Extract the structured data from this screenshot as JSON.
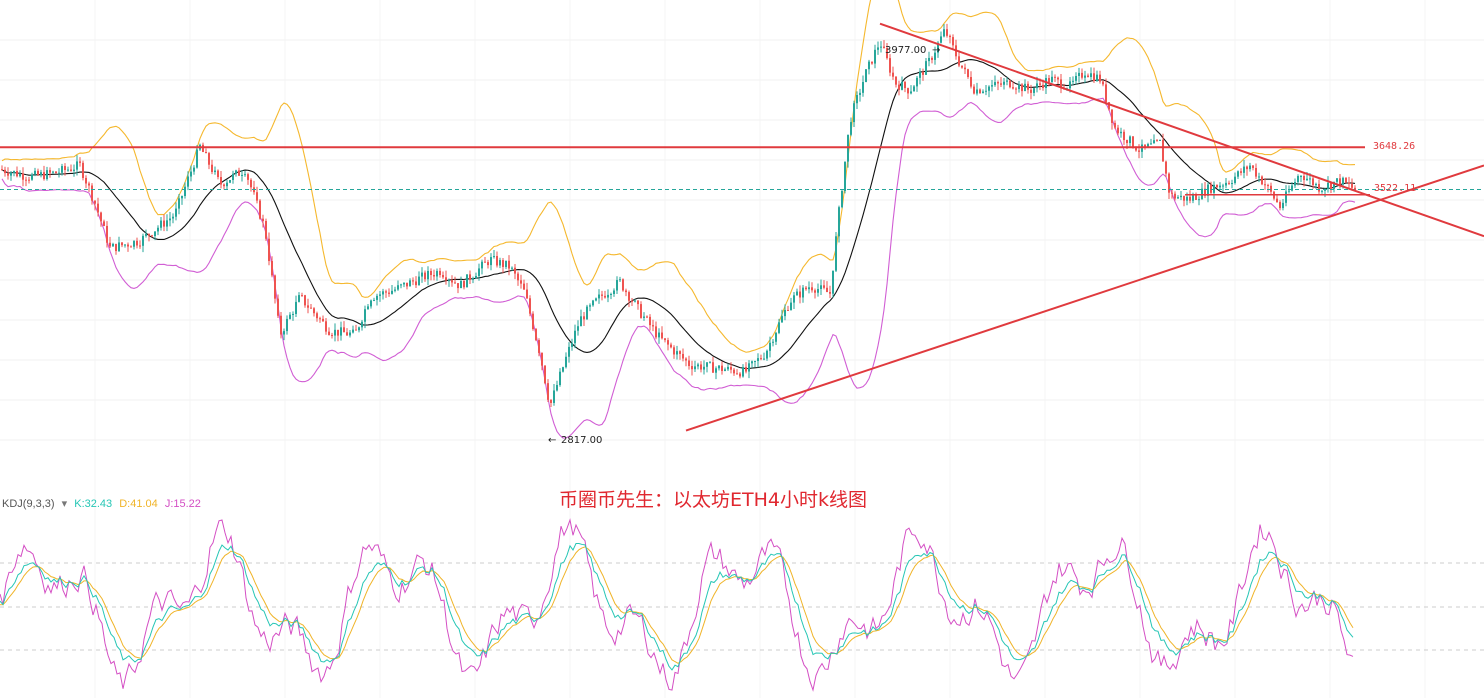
{
  "caption": "币圈币先生：以太坊ETH4小时k线图",
  "indicator": {
    "name": "KDJ(9,3,3)",
    "menu_icon": "dropdown-caret-icon",
    "k_label": "K:32.43",
    "d_label": "D:41.04",
    "j_label": "J:15.22",
    "colors": {
      "k": "#26c6b5",
      "d": "#f0b429",
      "j": "#d44fc4"
    }
  },
  "annotations": {
    "high_label": "3977.00",
    "low_label": "2817.00",
    "resistance_label": "3648.26",
    "support_label": "3522.11"
  },
  "colors": {
    "up": "#26a69a",
    "down": "#ef5350",
    "upper_band": "#f5b82e",
    "lower_band": "#d15ed4",
    "middle_band": "#111111",
    "trendline": "#e03a3e",
    "current_price_line": "#26a69a"
  },
  "chart_data": {
    "type": "candlestick",
    "instrument": "ETH",
    "interval": "4h",
    "ylim": [
      2790,
      4040
    ],
    "key_levels": {
      "resistance": 3648.26,
      "support": 3522.11,
      "high": 3977.0,
      "low": 2817.0,
      "current": 3536
    },
    "path": [
      [
        0,
        3590
      ],
      [
        30,
        3570
      ],
      [
        55,
        3580
      ],
      [
        80,
        3600
      ],
      [
        95,
        3500
      ],
      [
        110,
        3380
      ],
      [
        140,
        3400
      ],
      [
        155,
        3430
      ],
      [
        175,
        3470
      ],
      [
        200,
        3650
      ],
      [
        220,
        3550
      ],
      [
        245,
        3590
      ],
      [
        265,
        3430
      ],
      [
        280,
        3150
      ],
      [
        300,
        3250
      ],
      [
        330,
        3160
      ],
      [
        355,
        3150
      ],
      [
        370,
        3250
      ],
      [
        395,
        3270
      ],
      [
        420,
        3300
      ],
      [
        440,
        3320
      ],
      [
        460,
        3280
      ],
      [
        490,
        3350
      ],
      [
        510,
        3330
      ],
      [
        525,
        3260
      ],
      [
        540,
        3100
      ],
      [
        550,
        2960
      ],
      [
        565,
        3080
      ],
      [
        580,
        3190
      ],
      [
        600,
        3250
      ],
      [
        620,
        3290
      ],
      [
        640,
        3210
      ],
      [
        660,
        3140
      ],
      [
        690,
        3070
      ],
      [
        720,
        3060
      ],
      [
        745,
        3050
      ],
      [
        765,
        3100
      ],
      [
        790,
        3240
      ],
      [
        810,
        3280
      ],
      [
        830,
        3260
      ],
      [
        840,
        3500
      ],
      [
        850,
        3720
      ],
      [
        865,
        3840
      ],
      [
        880,
        3930
      ],
      [
        895,
        3820
      ],
      [
        910,
        3800
      ],
      [
        930,
        3880
      ],
      [
        945,
        3960
      ],
      [
        960,
        3870
      ],
      [
        975,
        3800
      ],
      [
        990,
        3810
      ],
      [
        1010,
        3820
      ],
      [
        1030,
        3800
      ],
      [
        1050,
        3830
      ],
      [
        1070,
        3810
      ],
      [
        1085,
        3850
      ],
      [
        1100,
        3830
      ],
      [
        1115,
        3700
      ],
      [
        1140,
        3640
      ],
      [
        1160,
        3660
      ],
      [
        1170,
        3520
      ],
      [
        1190,
        3510
      ],
      [
        1210,
        3540
      ],
      [
        1230,
        3560
      ],
      [
        1250,
        3600
      ],
      [
        1265,
        3550
      ],
      [
        1280,
        3490
      ],
      [
        1300,
        3580
      ],
      [
        1320,
        3540
      ],
      [
        1340,
        3560
      ],
      [
        1355,
        3536
      ]
    ]
  }
}
